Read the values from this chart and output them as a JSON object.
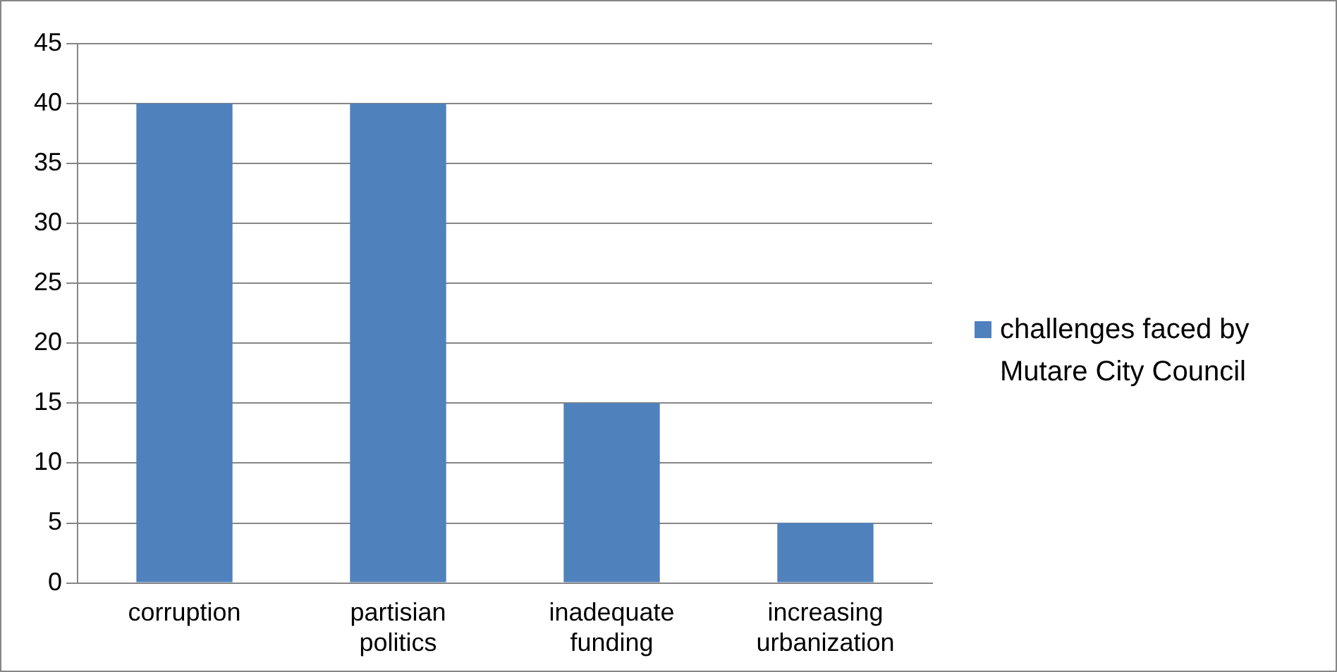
{
  "chart_data": {
    "type": "bar",
    "categories": [
      "corruption",
      "partisian politics",
      "inadequate funding",
      "increasing urbanization"
    ],
    "series": [
      {
        "name": "challenges faced by Mutare City Council",
        "color": "#4f81bd",
        "values": [
          40,
          40,
          15,
          5
        ]
      }
    ],
    "ylim": [
      0,
      45
    ],
    "yticks": [
      0,
      5,
      10,
      15,
      20,
      25,
      30,
      35,
      40,
      45
    ],
    "grid": "y",
    "legend": "right"
  }
}
